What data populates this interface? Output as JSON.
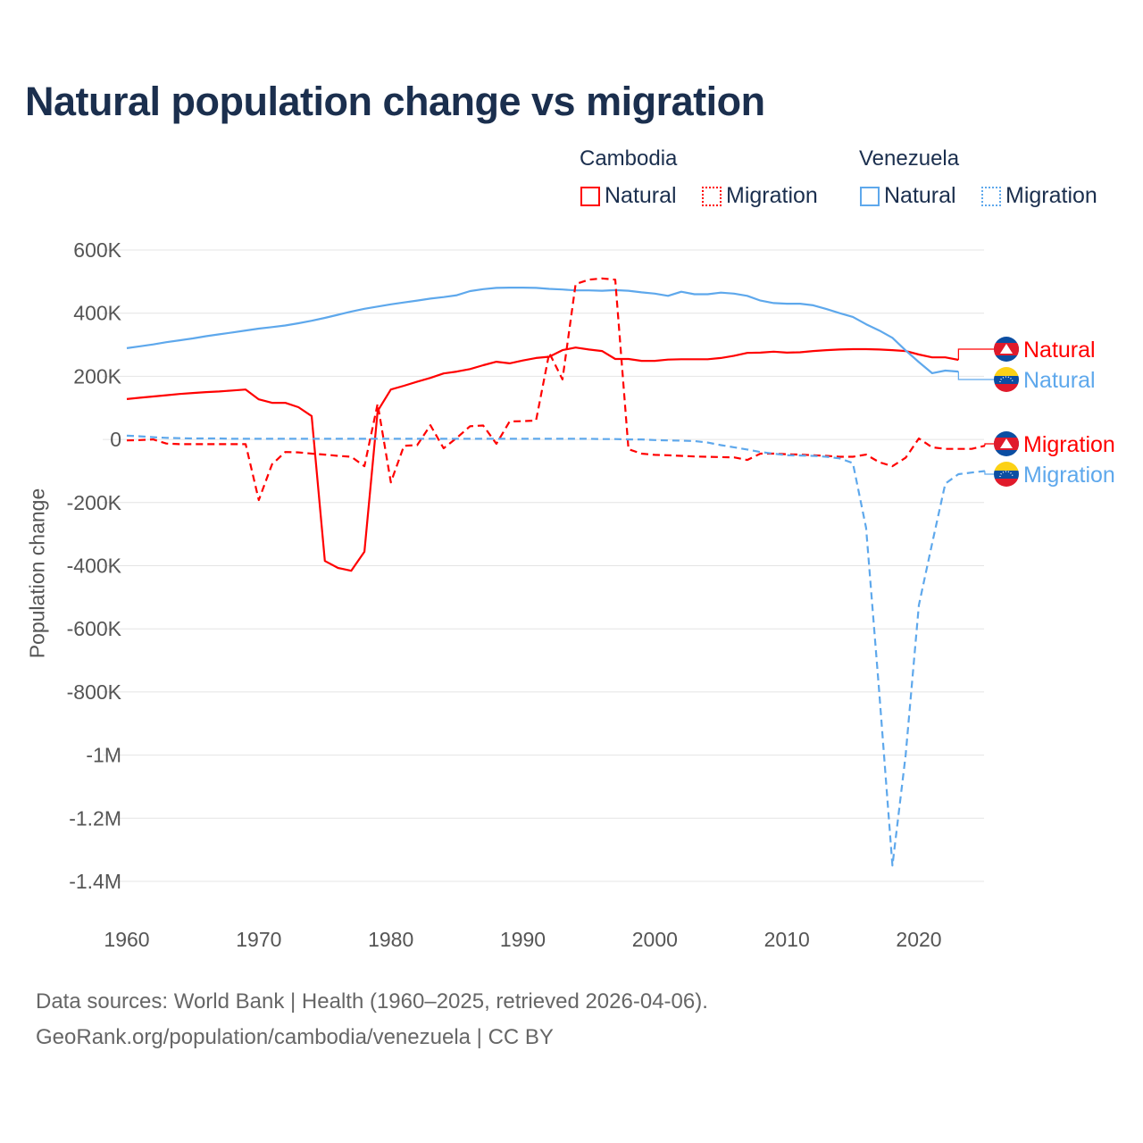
{
  "chart_data": {
    "type": "line",
    "title": "Natural population change vs migration",
    "xlabel": "",
    "ylabel": "Population change",
    "xlim": [
      1960,
      2025
    ],
    "ylim": [
      -1400000,
      600000
    ],
    "x_ticks": [
      1960,
      1970,
      1980,
      1990,
      2000,
      2010,
      2020
    ],
    "x_tick_labels": [
      "1960",
      "1970",
      "1980",
      "1990",
      "2000",
      "2010",
      "2020"
    ],
    "y_ticks": [
      600000,
      400000,
      200000,
      0,
      -200000,
      -400000,
      -600000,
      -800000,
      -1000000,
      -1200000,
      -1400000
    ],
    "y_tick_labels": [
      "600K",
      "400K",
      "200K",
      "0",
      "-200K",
      "-400K",
      "-600K",
      "-800K",
      "-1M",
      "-1.2M",
      "-1.4M"
    ],
    "grid": true,
    "legend": {
      "placement": "top-right",
      "groups": [
        {
          "name": "Cambodia",
          "items": [
            "Natural",
            "Migration"
          ]
        },
        {
          "name": "Venezuela",
          "items": [
            "Natural",
            "Migration"
          ]
        }
      ]
    },
    "series": [
      {
        "name": "Natural",
        "country": "Cambodia",
        "color": "#ff0000",
        "dash": false,
        "x_start": 1960,
        "values": [
          128000,
          132000,
          136000,
          140000,
          144000,
          147000,
          150000,
          152000,
          155000,
          158000,
          127000,
          116000,
          116000,
          102000,
          74000,
          -385000,
          -407000,
          -416000,
          -356000,
          90000,
          158000,
          170000,
          183000,
          195000,
          209000,
          215000,
          223000,
          235000,
          246000,
          241000,
          250000,
          258000,
          262000,
          283000,
          291000,
          285000,
          280000,
          255000,
          255000,
          249000,
          249000,
          253000,
          254000,
          254000,
          254000,
          258000,
          265000,
          274000,
          275000,
          278000,
          275000,
          276000,
          280000,
          283000,
          285000,
          286000,
          286000,
          285000,
          283000,
          280000,
          269000,
          260000,
          260000,
          252000
        ]
      },
      {
        "name": "Migration",
        "country": "Cambodia",
        "color": "#ff0000",
        "dash": true,
        "x_start": 1960,
        "values": [
          -3000,
          -2000,
          0,
          -13000,
          -15000,
          -15000,
          -15000,
          -15000,
          -15000,
          -15000,
          -192000,
          -79000,
          -40000,
          -41000,
          -45000,
          -48000,
          -52000,
          -55000,
          -85000,
          113000,
          -136000,
          -20000,
          -18000,
          45000,
          -28000,
          5000,
          42000,
          44000,
          -14000,
          57000,
          58000,
          60000,
          274000,
          190000,
          492000,
          506000,
          510000,
          506000,
          -31000,
          -45000,
          -49000,
          -50000,
          -52000,
          -54000,
          -55000,
          -56000,
          -57000,
          -65000,
          -45000,
          -45000,
          -47000,
          -48000,
          -50000,
          -52000,
          -55000,
          -55000,
          -48000,
          -72000,
          -85000,
          -58000,
          3000,
          -25000,
          -30000,
          -30000,
          -30000,
          -20000
        ]
      },
      {
        "name": "Natural",
        "country": "Venezuela",
        "color": "#5ea8ec",
        "dash": false,
        "x_start": 1960,
        "values": [
          289000,
          295000,
          301000,
          308000,
          314000,
          320000,
          327000,
          333000,
          339000,
          345000,
          351000,
          356000,
          361000,
          368000,
          376000,
          385000,
          395000,
          405000,
          414000,
          421000,
          428000,
          434000,
          440000,
          446000,
          451000,
          457000,
          470000,
          476000,
          480000,
          481000,
          481000,
          480000,
          477000,
          475000,
          472000,
          472000,
          471000,
          473000,
          471000,
          466000,
          462000,
          455000,
          468000,
          460000,
          460000,
          465000,
          462000,
          455000,
          440000,
          432000,
          430000,
          430000,
          425000,
          413000,
          400000,
          388000,
          365000,
          345000,
          322000,
          282000,
          245000,
          210000,
          218000,
          215000
        ]
      },
      {
        "name": "Migration",
        "country": "Venezuela",
        "color": "#5ea8ec",
        "dash": true,
        "x_start": 1960,
        "values": [
          12000,
          10000,
          7000,
          5000,
          4000,
          3000,
          3000,
          3000,
          2000,
          2000,
          2000,
          2000,
          2000,
          2000,
          2000,
          2000,
          2000,
          2000,
          2000,
          2000,
          2000,
          2000,
          2000,
          2000,
          2000,
          2000,
          2000,
          2000,
          2000,
          2000,
          2000,
          2000,
          2000,
          2000,
          2000,
          2000,
          1000,
          1000,
          0,
          0,
          -2000,
          -3000,
          -4000,
          -5000,
          -10000,
          -18000,
          -25000,
          -32000,
          -40000,
          -45000,
          -50000,
          -51000,
          -52000,
          -55000,
          -60000,
          -75000,
          -280000,
          -800000,
          -1350000,
          -1000000,
          -525000,
          -330000,
          -140000,
          -110000,
          -105000,
          -100000
        ]
      }
    ],
    "end_labels": [
      "Natural",
      "Natural",
      "Migration",
      "Migration"
    ]
  },
  "legend": {
    "cambodia": "Cambodia",
    "venezuela": "Venezuela",
    "natural": "Natural",
    "migration": "Migration"
  },
  "source": {
    "line1": "Data sources: World Bank | Health (1960–2025, retrieved 2026-04-06).",
    "line2": "GeoRank.org/population/cambodia/venezuela | CC BY"
  }
}
